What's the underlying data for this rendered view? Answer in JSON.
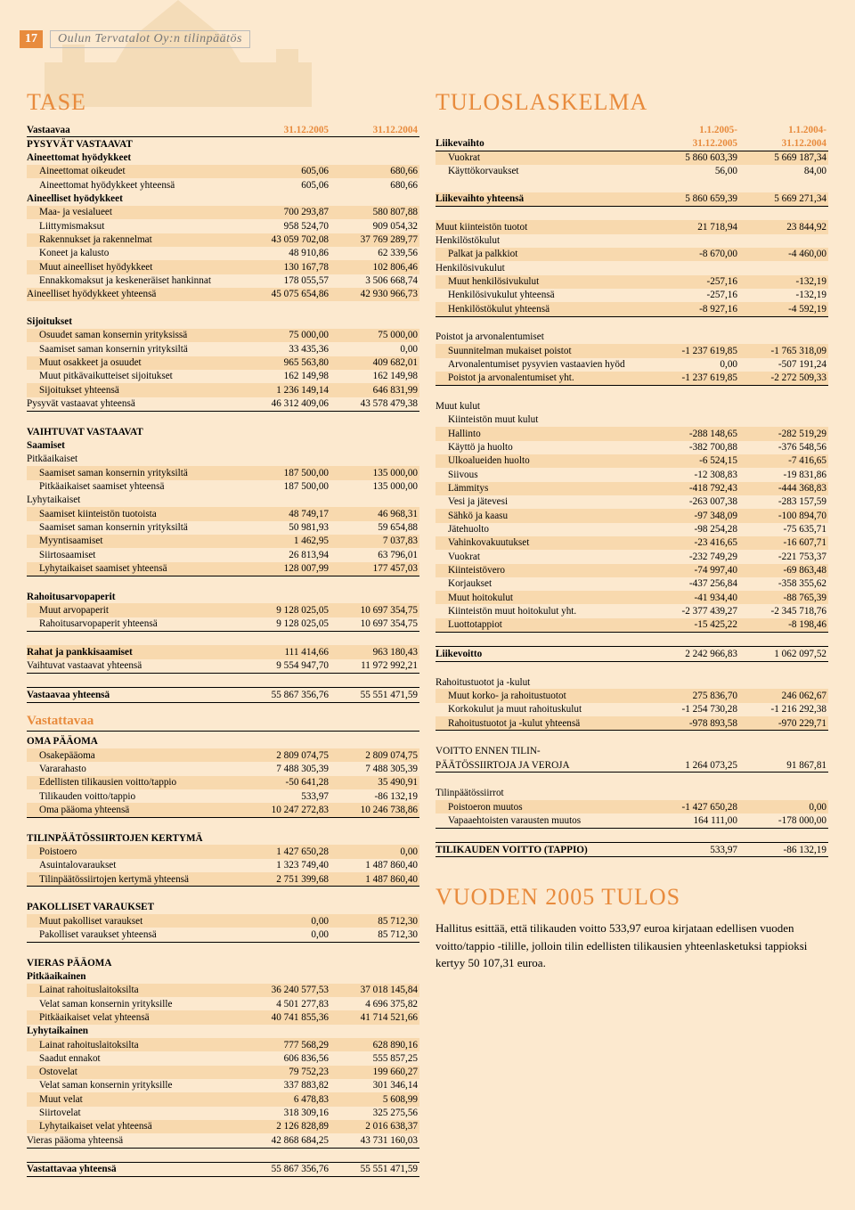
{
  "header": {
    "page": "17",
    "title": "Oulun Tervatalot Oy:n tilinpäätös"
  },
  "colors": {
    "bg": "#fce9cf",
    "shade": "#f8d9ae",
    "accent": "#e88b3d",
    "line": "#000000"
  },
  "left": {
    "title": "TASE",
    "h1": {
      "label": "Vastaavaa",
      "c1": "31.12.2005",
      "c2": "31.12.2004"
    },
    "rows1": [
      {
        "t": "sec",
        "lbl": "PYSYVÄT VASTAAVAT"
      },
      {
        "t": "sec",
        "lbl": "Aineettomat hyödykkeet"
      },
      {
        "t": "row",
        "sh": 1,
        "ind": 1,
        "lbl": "Aineettomat oikeudet",
        "c1": "605,06",
        "c2": "680,66"
      },
      {
        "t": "row",
        "ind": 1,
        "lbl": "Aineettomat hyödykkeet yhteensä",
        "c1": "605,06",
        "c2": "680,66"
      },
      {
        "t": "sec",
        "lbl": "Aineelliset hyödykkeet"
      },
      {
        "t": "row",
        "sh": 1,
        "ind": 1,
        "lbl": "Maa- ja vesialueet",
        "c1": "700 293,87",
        "c2": "580 807,88"
      },
      {
        "t": "row",
        "ind": 1,
        "lbl": "Liittymismaksut",
        "c1": "958 524,70",
        "c2": "909 054,32"
      },
      {
        "t": "row",
        "sh": 1,
        "ind": 1,
        "lbl": "Rakennukset ja rakennelmat",
        "c1": "43 059 702,08",
        "c2": "37 769 289,77"
      },
      {
        "t": "row",
        "ind": 1,
        "lbl": "Koneet ja kalusto",
        "c1": "48 910,86",
        "c2": "62 339,56"
      },
      {
        "t": "row",
        "sh": 1,
        "ind": 1,
        "lbl": "Muut aineelliset hyödykkeet",
        "c1": "130 167,78",
        "c2": "102 806,46"
      },
      {
        "t": "row",
        "ind": 1,
        "lbl": "Ennakkomaksut ja keskeneräiset hankinnat",
        "c1": "178 055,57",
        "c2": "3 506 668,74"
      },
      {
        "t": "row",
        "sh": 1,
        "lbl": "Aineelliset hyödykkeet yhteensä",
        "c1": "45 075 654,86",
        "c2": "42 930 966,73"
      },
      {
        "t": "gap"
      },
      {
        "t": "sec",
        "lbl": "Sijoitukset"
      },
      {
        "t": "row",
        "sh": 1,
        "ind": 1,
        "lbl": "Osuudet saman konsernin yrityksissä",
        "c1": "75 000,00",
        "c2": "75 000,00"
      },
      {
        "t": "row",
        "ind": 1,
        "lbl": "Saamiset saman konsernin yrityksiltä",
        "c1": "33 435,36",
        "c2": "0,00"
      },
      {
        "t": "row",
        "sh": 1,
        "ind": 1,
        "lbl": "Muut osakkeet ja osuudet",
        "c1": "965 563,80",
        "c2": "409 682,01"
      },
      {
        "t": "row",
        "ind": 1,
        "lbl": "Muut pitkävaikutteiset sijoitukset",
        "c1": "162 149,98",
        "c2": "162 149,98"
      },
      {
        "t": "row",
        "sh": 1,
        "ind": 1,
        "lbl": "Sijoitukset yhteensä",
        "c1": "1 236 149,14",
        "c2": "646 831,99"
      },
      {
        "t": "row",
        "bl": 1,
        "lbl": "Pysyvät vastaavat yhteensä",
        "c1": "46 312 409,06",
        "c2": "43 578 479,38"
      },
      {
        "t": "gap"
      },
      {
        "t": "sec",
        "lbl": "VAIHTUVAT VASTAAVAT"
      },
      {
        "t": "sec",
        "lbl": "Saamiset"
      },
      {
        "t": "row",
        "lbl": "Pitkäaikaiset"
      },
      {
        "t": "row",
        "sh": 1,
        "ind": 1,
        "lbl": "Saamiset saman konsernin yrityksiltä",
        "c1": "187 500,00",
        "c2": "135 000,00"
      },
      {
        "t": "row",
        "ind": 1,
        "lbl": "Pitkäaikaiset saamiset yhteensä",
        "c1": "187 500,00",
        "c2": "135 000,00"
      },
      {
        "t": "row",
        "lbl": "Lyhytaikaiset"
      },
      {
        "t": "row",
        "sh": 1,
        "ind": 1,
        "lbl": "Saamiset kiinteistön tuotoista",
        "c1": "48 749,17",
        "c2": "46 968,31"
      },
      {
        "t": "row",
        "ind": 1,
        "lbl": "Saamiset saman konsernin yrityksiltä",
        "c1": "50 981,93",
        "c2": "59 654,88"
      },
      {
        "t": "row",
        "sh": 1,
        "ind": 1,
        "lbl": "Myyntisaamiset",
        "c1": "1 462,95",
        "c2": "7 037,83"
      },
      {
        "t": "row",
        "ind": 1,
        "lbl": "Siirtosaamiset",
        "c1": "26 813,94",
        "c2": "63 796,01"
      },
      {
        "t": "row",
        "sh": 1,
        "bl": 1,
        "ind": 1,
        "lbl": "Lyhytaikaiset saamiset yhteensä",
        "c1": "128 007,99",
        "c2": "177 457,03"
      },
      {
        "t": "gap"
      },
      {
        "t": "sec",
        "lbl": "Rahoitusarvopaperit"
      },
      {
        "t": "row",
        "sh": 1,
        "ind": 1,
        "lbl": "Muut arvopaperit",
        "c1": "9 128 025,05",
        "c2": "10 697 354,75"
      },
      {
        "t": "row",
        "bl": 1,
        "ind": 1,
        "lbl": "Rahoitusarvopaperit yhteensä",
        "c1": "9 128 025,05",
        "c2": "10 697 354,75"
      },
      {
        "t": "gap"
      },
      {
        "t": "sec",
        "sh": 1,
        "lbl": "Rahat ja pankkisaamiset",
        "c1": "111 414,66",
        "c2": "963 180,43"
      },
      {
        "t": "row",
        "bl": 1,
        "lbl": "Vaihtuvat vastaavat yhteensä",
        "c1": "9 554 947,70",
        "c2": "11 972 992,21"
      },
      {
        "t": "gap"
      },
      {
        "t": "sec",
        "dl": 1,
        "lbl": "Vastaavaa yhteensä",
        "c1": "55 867 356,76",
        "c2": "55 551 471,59"
      }
    ],
    "sub2": "Vastattavaa",
    "rows2": [
      {
        "t": "sec",
        "lbl": "OMA PÄÄOMA"
      },
      {
        "t": "row",
        "sh": 1,
        "ind": 1,
        "lbl": "Osakepääoma",
        "c1": "2 809 074,75",
        "c2": "2 809 074,75"
      },
      {
        "t": "row",
        "ind": 1,
        "lbl": "Vararahasto",
        "c1": "7 488 305,39",
        "c2": "7 488 305,39"
      },
      {
        "t": "row",
        "sh": 1,
        "ind": 1,
        "lbl": "Edellisten tilikausien voitto/tappio",
        "c1": "-50 641,28",
        "c2": "35 490,91"
      },
      {
        "t": "row",
        "ind": 1,
        "lbl": "Tilikauden voitto/tappio",
        "c1": "533,97",
        "c2": "-86 132,19"
      },
      {
        "t": "row",
        "sh": 1,
        "bl": 1,
        "ind": 1,
        "lbl": "Oma pääoma yhteensä",
        "c1": "10 247 272,83",
        "c2": "10 246 738,86"
      },
      {
        "t": "gap"
      },
      {
        "t": "sec",
        "lbl": "TILINPÄÄTÖSSIIRTOJEN KERTYMÄ"
      },
      {
        "t": "row",
        "sh": 1,
        "ind": 1,
        "lbl": "Poistoero",
        "c1": "1 427 650,28",
        "c2": "0,00"
      },
      {
        "t": "row",
        "ind": 1,
        "lbl": "Asuintalovaraukset",
        "c1": "1 323 749,40",
        "c2": "1 487 860,40"
      },
      {
        "t": "row",
        "sh": 1,
        "bl": 1,
        "ind": 1,
        "lbl": "Tilinpäätössiirtojen kertymä yhteensä",
        "c1": "2 751 399,68",
        "c2": "1 487 860,40"
      },
      {
        "t": "gap"
      },
      {
        "t": "sec",
        "lbl": "PAKOLLISET VARAUKSET"
      },
      {
        "t": "row",
        "sh": 1,
        "ind": 1,
        "lbl": "Muut pakolliset varaukset",
        "c1": "0,00",
        "c2": "85 712,30"
      },
      {
        "t": "row",
        "bl": 1,
        "ind": 1,
        "lbl": "Pakolliset varaukset yhteensä",
        "c1": "0,00",
        "c2": "85 712,30"
      },
      {
        "t": "gap"
      },
      {
        "t": "sec",
        "lbl": "VIERAS PÄÄOMA"
      },
      {
        "t": "sec",
        "lbl": "Pitkäaikainen"
      },
      {
        "t": "row",
        "sh": 1,
        "ind": 1,
        "lbl": "Lainat  rahoituslaitoksilta",
        "c1": "36 240 577,53",
        "c2": "37 018 145,84"
      },
      {
        "t": "row",
        "ind": 1,
        "lbl": "Velat saman konsernin yrityksille",
        "c1": "4 501 277,83",
        "c2": "4 696 375,82"
      },
      {
        "t": "row",
        "sh": 1,
        "ind": 1,
        "lbl": "Pitkäaikaiset velat yhteensä",
        "c1": "40 741 855,36",
        "c2": "41 714 521,66"
      },
      {
        "t": "sec",
        "lbl": "Lyhytaikainen"
      },
      {
        "t": "row",
        "sh": 1,
        "ind": 1,
        "lbl": "Lainat rahoituslaitoksilta",
        "c1": "777 568,29",
        "c2": "628 890,16"
      },
      {
        "t": "row",
        "ind": 1,
        "lbl": "Saadut ennakot",
        "c1": "606 836,56",
        "c2": "555 857,25"
      },
      {
        "t": "row",
        "sh": 1,
        "ind": 1,
        "lbl": "Ostovelat",
        "c1": "79 752,23",
        "c2": "199 660,27"
      },
      {
        "t": "row",
        "ind": 1,
        "lbl": "Velat saman konsernin yrityksille",
        "c1": "337 883,82",
        "c2": "301 346,14"
      },
      {
        "t": "row",
        "sh": 1,
        "ind": 1,
        "lbl": "Muut velat",
        "c1": "6 478,83",
        "c2": "5 608,99"
      },
      {
        "t": "row",
        "ind": 1,
        "lbl": "Siirtovelat",
        "c1": "318 309,16",
        "c2": "325 275,56"
      },
      {
        "t": "row",
        "sh": 1,
        "ind": 1,
        "lbl": "Lyhytaikaiset velat yhteensä",
        "c1": "2 126 828,89",
        "c2": "2 016 638,37"
      },
      {
        "t": "row",
        "bl": 1,
        "lbl": "Vieras pääoma yhteensä",
        "c1": "42 868 684,25",
        "c2": "43 731 160,03"
      },
      {
        "t": "gap"
      },
      {
        "t": "sec",
        "dl": 1,
        "lbl": "Vastattavaa yhteensä",
        "c1": "55 867 356,76",
        "c2": "55 551 471,59"
      }
    ]
  },
  "right": {
    "title": "TULOSLASKELMA",
    "h1": {
      "label": "Liikevaihto",
      "c1a": "1.1.2005-",
      "c1b": "31.12.2005",
      "c2a": "1.1.2004-",
      "c2b": "31.12.2004"
    },
    "rows": [
      {
        "t": "row",
        "sh": 1,
        "ind": 1,
        "lbl": "Vuokrat",
        "c1": "5 860 603,39",
        "c2": "5 669 187,34"
      },
      {
        "t": "row",
        "ind": 1,
        "lbl": "Käyttökorvaukset",
        "c1": "56,00",
        "c2": "84,00"
      },
      {
        "t": "gap"
      },
      {
        "t": "sec",
        "sh": 1,
        "bl": 1,
        "lbl": "Liikevaihto yhteensä",
        "c1": "5 860 659,39",
        "c2": "5 669 271,34"
      },
      {
        "t": "gap"
      },
      {
        "t": "row",
        "sh": 1,
        "lbl": "Muut kiinteistön tuotot",
        "c1": "21 718,94",
        "c2": "23 844,92"
      },
      {
        "t": "row",
        "lbl": "Henkilöstökulut"
      },
      {
        "t": "row",
        "sh": 1,
        "ind": 1,
        "lbl": "Palkat ja palkkiot",
        "c1": "-8 670,00",
        "c2": "-4 460,00"
      },
      {
        "t": "row",
        "lbl": "Henkilösivukulut"
      },
      {
        "t": "row",
        "sh": 1,
        "ind": 1,
        "lbl": "Muut henkilösivukulut",
        "c1": "-257,16",
        "c2": "-132,19"
      },
      {
        "t": "row",
        "ind": 1,
        "lbl": "Henkilösivukulut yhteensä",
        "c1": "-257,16",
        "c2": "-132,19"
      },
      {
        "t": "row",
        "sh": 1,
        "bl": 1,
        "ind": 1,
        "lbl": "Henkilöstökulut yhteensä",
        "c1": "-8 927,16",
        "c2": "-4 592,19"
      },
      {
        "t": "gap"
      },
      {
        "t": "row",
        "lbl": "Poistot ja arvonalentumiset"
      },
      {
        "t": "row",
        "sh": 1,
        "ind": 1,
        "lbl": "Suunnitelman mukaiset poistot",
        "c1": "-1 237 619,85",
        "c2": "-1 765 318,09"
      },
      {
        "t": "row",
        "ind": 1,
        "lbl": "Arvonalentumiset pysyvien vastaavien hyöd",
        "c1": "0,00",
        "c2": "-507 191,24"
      },
      {
        "t": "row",
        "sh": 1,
        "bl": 1,
        "ind": 1,
        "lbl": "Poistot ja  arvonalentumiset yht.",
        "c1": "-1 237 619,85",
        "c2": "-2 272 509,33"
      },
      {
        "t": "gap"
      },
      {
        "t": "row",
        "lbl": "Muut kulut"
      },
      {
        "t": "row",
        "ind": 1,
        "lbl": "Kiinteistön muut kulut"
      },
      {
        "t": "row",
        "sh": 1,
        "ind": 1,
        "lbl": "Hallinto",
        "c1": "-288 148,65",
        "c2": "-282 519,29"
      },
      {
        "t": "row",
        "ind": 1,
        "lbl": "Käyttö ja huolto",
        "c1": "-382 700,88",
        "c2": "-376 548,56"
      },
      {
        "t": "row",
        "sh": 1,
        "ind": 1,
        "lbl": "Ulkoalueiden huolto",
        "c1": "-6 524,15",
        "c2": "-7 416,65"
      },
      {
        "t": "row",
        "ind": 1,
        "lbl": "Siivous",
        "c1": "-12 308,83",
        "c2": "-19 831,86"
      },
      {
        "t": "row",
        "sh": 1,
        "ind": 1,
        "lbl": "Lämmitys",
        "c1": "-418 792,43",
        "c2": "-444 368,83"
      },
      {
        "t": "row",
        "ind": 1,
        "lbl": "Vesi ja jätevesi",
        "c1": "-263 007,38",
        "c2": "-283 157,59"
      },
      {
        "t": "row",
        "sh": 1,
        "ind": 1,
        "lbl": "Sähkö ja kaasu",
        "c1": "-97 348,09",
        "c2": "-100 894,70"
      },
      {
        "t": "row",
        "ind": 1,
        "lbl": "Jätehuolto",
        "c1": "-98 254,28",
        "c2": "-75 635,71"
      },
      {
        "t": "row",
        "sh": 1,
        "ind": 1,
        "lbl": "Vahinkovakuutukset",
        "c1": "-23 416,65",
        "c2": "-16 607,71"
      },
      {
        "t": "row",
        "ind": 1,
        "lbl": "Vuokrat",
        "c1": "-232 749,29",
        "c2": "-221 753,37"
      },
      {
        "t": "row",
        "sh": 1,
        "ind": 1,
        "lbl": "Kiinteistövero",
        "c1": "-74 997,40",
        "c2": "-69 863,48"
      },
      {
        "t": "row",
        "ind": 1,
        "lbl": "Korjaukset",
        "c1": "-437 256,84",
        "c2": "-358 355,62"
      },
      {
        "t": "row",
        "sh": 1,
        "ind": 1,
        "lbl": "Muut hoitokulut",
        "c1": "-41 934,40",
        "c2": "-88 765,39"
      },
      {
        "t": "row",
        "ind": 1,
        "lbl": "Kiinteistön muut hoitokulut yht.",
        "c1": "-2 377 439,27",
        "c2": "-2 345 718,76"
      },
      {
        "t": "row",
        "sh": 1,
        "bl": 1,
        "ind": 1,
        "lbl": "Luottotappiot",
        "c1": "-15 425,22",
        "c2": "-8 198,46"
      },
      {
        "t": "gap"
      },
      {
        "t": "sec",
        "dl": 1,
        "lbl": "Liikevoitto",
        "c1": "2 242 966,83",
        "c2": "1 062 097,52"
      },
      {
        "t": "gap"
      },
      {
        "t": "row",
        "lbl": "Rahoitustuotot ja -kulut"
      },
      {
        "t": "row",
        "sh": 1,
        "ind": 1,
        "lbl": "Muut korko- ja rahoitustuotot",
        "c1": "275 836,70",
        "c2": "246 062,67"
      },
      {
        "t": "row",
        "ind": 1,
        "lbl": "Korkokulut ja muut rahoituskulut",
        "c1": "-1 254 730,28",
        "c2": "-1 216 292,38"
      },
      {
        "t": "row",
        "sh": 1,
        "bl": 1,
        "ind": 1,
        "lbl": "Rahoitustuotot ja -kulut yhteensä",
        "c1": "-978 893,58",
        "c2": "-970 229,71"
      },
      {
        "t": "gap"
      },
      {
        "t": "row",
        "lbl": "VOITTO ENNEN TILIN-"
      },
      {
        "t": "row",
        "bl": 1,
        "lbl": "PÄÄTÖSSIIRTOJA JA VEROJA",
        "c1": "1 264 073,25",
        "c2": "91 867,81"
      },
      {
        "t": "gap"
      },
      {
        "t": "row",
        "lbl": "Tilinpäätössiirrot"
      },
      {
        "t": "row",
        "sh": 1,
        "ind": 1,
        "lbl": "Poistoeron muutos",
        "c1": "-1 427 650,28",
        "c2": "0,00"
      },
      {
        "t": "row",
        "bl": 1,
        "ind": 1,
        "lbl": "Vapaaehtoisten varausten muutos",
        "c1": "164 111,00",
        "c2": "-178 000,00"
      },
      {
        "t": "gap"
      },
      {
        "t": "sec",
        "dl": 1,
        "lbl": "TILIKAUDEN VOITTO (TAPPIO)",
        "c1": "533,97",
        "c2": "-86 132,19"
      }
    ],
    "footer": {
      "title": "VUODEN 2005 TULOS",
      "text": "Hallitus esittää, että tilikauden voitto 533,97 euroa kirjataan edellisen vuoden voitto/tappio -tilille, jolloin tilin edellisten tilikausien yhteenlasketuksi tappioksi kertyy 50 107,31 euroa."
    }
  }
}
